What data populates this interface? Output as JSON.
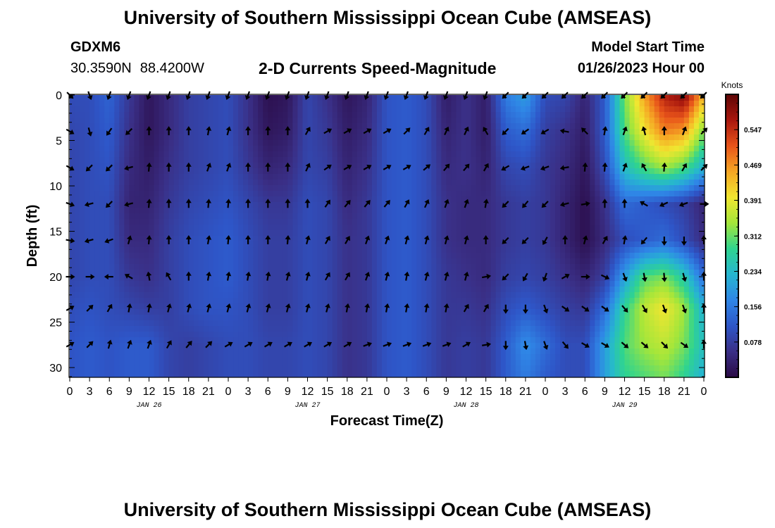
{
  "header": {
    "title": "University of Southern Mississippi Ocean Cube (AMSEAS)",
    "station": "GDXM6",
    "lat": "30.3590N",
    "lon": "88.4200W",
    "subtitle": "2-D Currents Speed-Magnitude",
    "model_start_label": "Model Start Time",
    "model_start_value": "01/26/2023 Hour 00"
  },
  "footer": {
    "title": "University of Southern Mississippi Ocean Cube (AMSEAS)"
  },
  "chart_data": {
    "type": "heatmap",
    "xlabel": "Forecast Time(Z)",
    "ylabel": "Depth (ft)",
    "x_hours": [
      0,
      3,
      6,
      9,
      12,
      15,
      18,
      21,
      0,
      3,
      6,
      9,
      12,
      15,
      18,
      21,
      0,
      3,
      6,
      9,
      12,
      15,
      18,
      21,
      0,
      3,
      6,
      9,
      12,
      15,
      18,
      21,
      0
    ],
    "date_labels": [
      {
        "label": "JAN 26",
        "x_index": 4
      },
      {
        "label": "JAN 27",
        "x_index": 12
      },
      {
        "label": "JAN 28",
        "x_index": 20
      },
      {
        "label": "JAN 29",
        "x_index": 28
      }
    ],
    "y_ticks": [
      0,
      5,
      10,
      15,
      20,
      25,
      30
    ],
    "ylim": [
      0,
      31
    ],
    "colorbar": {
      "title": "Knots",
      "ticks": [
        0.078,
        0.156,
        0.234,
        0.312,
        0.391,
        0.469,
        0.547
      ],
      "range": [
        0,
        0.625
      ]
    },
    "colormap": [
      "#2a0a45",
      "#3a2f86",
      "#2e56c8",
      "#2f86e6",
      "#26b6d0",
      "#2fd48f",
      "#a4e63a",
      "#f1e630",
      "#f5a624",
      "#e8541a",
      "#a8170e",
      "#5e0505"
    ],
    "arrow_depths": [
      0,
      4,
      8,
      12,
      16,
      20,
      23.5,
      27.5
    ],
    "speed_grid": {
      "depths": [
        0,
        4,
        8,
        12,
        16,
        20,
        23.5,
        27.5,
        31
      ],
      "rows": [
        [
          0.1,
          0.1,
          0.13,
          0.07,
          0.02,
          0.05,
          0.08,
          0.09,
          0.1,
          0.06,
          0.01,
          0.02,
          0.09,
          0.06,
          0.02,
          0.04,
          0.11,
          0.12,
          0.1,
          0.03,
          0.06,
          0.03,
          0.16,
          0.2,
          0.1,
          0.09,
          0.04,
          0.12,
          0.32,
          0.46,
          0.56,
          0.6,
          0.44
        ],
        [
          0.09,
          0.1,
          0.12,
          0.06,
          0.02,
          0.05,
          0.08,
          0.09,
          0.1,
          0.06,
          0.02,
          0.03,
          0.09,
          0.07,
          0.03,
          0.05,
          0.11,
          0.12,
          0.1,
          0.04,
          0.06,
          0.03,
          0.12,
          0.14,
          0.08,
          0.06,
          0.03,
          0.12,
          0.3,
          0.4,
          0.48,
          0.46,
          0.32
        ],
        [
          0.09,
          0.1,
          0.11,
          0.05,
          0.03,
          0.06,
          0.08,
          0.09,
          0.1,
          0.07,
          0.04,
          0.05,
          0.09,
          0.08,
          0.04,
          0.06,
          0.11,
          0.12,
          0.1,
          0.05,
          0.06,
          0.04,
          0.09,
          0.1,
          0.07,
          0.05,
          0.02,
          0.1,
          0.24,
          0.3,
          0.34,
          0.3,
          0.22
        ],
        [
          0.09,
          0.1,
          0.1,
          0.04,
          0.04,
          0.07,
          0.09,
          0.1,
          0.11,
          0.09,
          0.07,
          0.07,
          0.1,
          0.09,
          0.05,
          0.07,
          0.11,
          0.12,
          0.1,
          0.06,
          0.05,
          0.05,
          0.07,
          0.08,
          0.07,
          0.04,
          0.01,
          0.06,
          0.14,
          0.12,
          0.1,
          0.08,
          0.04
        ],
        [
          0.09,
          0.1,
          0.1,
          0.05,
          0.05,
          0.08,
          0.1,
          0.11,
          0.12,
          0.1,
          0.08,
          0.08,
          0.1,
          0.09,
          0.06,
          0.07,
          0.11,
          0.12,
          0.1,
          0.06,
          0.05,
          0.05,
          0.07,
          0.08,
          0.07,
          0.04,
          0.01,
          0.05,
          0.1,
          0.12,
          0.14,
          0.1,
          0.05
        ],
        [
          0.09,
          0.1,
          0.1,
          0.07,
          0.06,
          0.08,
          0.1,
          0.11,
          0.12,
          0.1,
          0.08,
          0.08,
          0.1,
          0.09,
          0.06,
          0.07,
          0.11,
          0.12,
          0.1,
          0.07,
          0.06,
          0.05,
          0.08,
          0.09,
          0.08,
          0.06,
          0.04,
          0.08,
          0.2,
          0.3,
          0.32,
          0.26,
          0.14
        ],
        [
          0.1,
          0.11,
          0.1,
          0.09,
          0.08,
          0.08,
          0.1,
          0.11,
          0.11,
          0.1,
          0.08,
          0.08,
          0.1,
          0.09,
          0.06,
          0.07,
          0.11,
          0.12,
          0.1,
          0.07,
          0.07,
          0.06,
          0.1,
          0.12,
          0.1,
          0.08,
          0.07,
          0.14,
          0.28,
          0.36,
          0.4,
          0.34,
          0.22
        ],
        [
          0.11,
          0.12,
          0.11,
          0.12,
          0.12,
          0.09,
          0.08,
          0.09,
          0.1,
          0.1,
          0.09,
          0.09,
          0.1,
          0.09,
          0.06,
          0.07,
          0.11,
          0.12,
          0.1,
          0.07,
          0.08,
          0.07,
          0.12,
          0.18,
          0.14,
          0.1,
          0.1,
          0.2,
          0.3,
          0.34,
          0.36,
          0.32,
          0.24
        ],
        [
          0.11,
          0.12,
          0.11,
          0.12,
          0.12,
          0.09,
          0.08,
          0.09,
          0.1,
          0.1,
          0.09,
          0.09,
          0.1,
          0.09,
          0.06,
          0.07,
          0.11,
          0.12,
          0.1,
          0.07,
          0.08,
          0.07,
          0.12,
          0.16,
          0.12,
          0.1,
          0.1,
          0.2,
          0.28,
          0.3,
          0.32,
          0.28,
          0.22
        ]
      ]
    },
    "direction_deg_grid": [
      [
        135,
        160,
        200,
        200,
        200,
        200,
        200,
        200,
        200,
        200,
        200,
        200,
        200,
        200,
        200,
        200,
        200,
        200,
        200,
        200,
        200,
        200,
        225,
        225,
        225,
        225,
        225,
        225,
        225,
        225,
        225,
        225,
        225
      ],
      [
        120,
        165,
        215,
        225,
        0,
        0,
        0,
        10,
        15,
        0,
        0,
        0,
        30,
        60,
        60,
        60,
        60,
        45,
        30,
        25,
        25,
        330,
        225,
        235,
        240,
        280,
        315,
        10,
        20,
        345,
        0,
        20,
        45
      ],
      [
        120,
        225,
        225,
        255,
        5,
        0,
        0,
        20,
        20,
        0,
        0,
        0,
        25,
        55,
        60,
        60,
        60,
        60,
        50,
        40,
        40,
        30,
        240,
        250,
        250,
        260,
        5,
        5,
        20,
        330,
        5,
        30,
        45
      ],
      [
        110,
        255,
        225,
        255,
        5,
        0,
        0,
        5,
        5,
        0,
        0,
        0,
        0,
        35,
        40,
        40,
        40,
        30,
        25,
        20,
        20,
        10,
        225,
        220,
        225,
        255,
        80,
        0,
        0,
        300,
        245,
        250,
        90
      ],
      [
        100,
        255,
        250,
        15,
        5,
        0,
        0,
        10,
        5,
        0,
        0,
        5,
        15,
        30,
        30,
        20,
        20,
        15,
        15,
        15,
        15,
        0,
        225,
        225,
        210,
        0,
        15,
        30,
        10,
        220,
        180,
        180,
        0
      ],
      [
        90,
        90,
        270,
        300,
        350,
        330,
        0,
        10,
        10,
        10,
        10,
        15,
        15,
        30,
        30,
        20,
        15,
        10,
        15,
        15,
        15,
        80,
        225,
        210,
        200,
        60,
        90,
        115,
        160,
        170,
        175,
        165,
        0
      ],
      [
        60,
        45,
        30,
        10,
        10,
        15,
        15,
        15,
        15,
        15,
        15,
        15,
        15,
        15,
        10,
        10,
        10,
        10,
        10,
        10,
        30,
        30,
        180,
        180,
        160,
        125,
        125,
        125,
        140,
        150,
        160,
        160,
        0
      ],
      [
        60,
        45,
        15,
        20,
        20,
        30,
        40,
        45,
        60,
        60,
        60,
        60,
        60,
        60,
        60,
        70,
        70,
        70,
        70,
        70,
        60,
        80,
        180,
        170,
        160,
        140,
        120,
        120,
        130,
        130,
        135,
        125,
        0
      ]
    ]
  }
}
